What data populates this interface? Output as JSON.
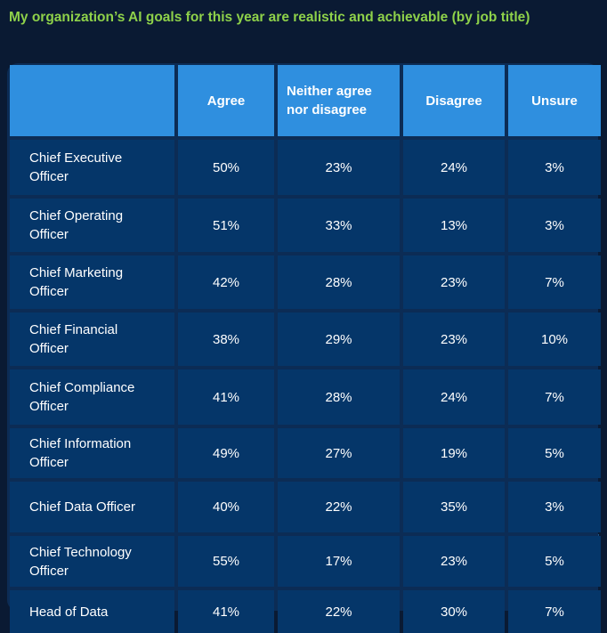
{
  "title": "My organization’s AI goals for this year are realistic and achievable (by job title)",
  "chart_data": {
    "type": "table",
    "title": "My organization’s AI goals for this year are realistic and achievable (by job title)",
    "columns": [
      "",
      "Agree",
      "Neither agree nor disagree",
      "Disagree",
      "Unsure"
    ],
    "rows": [
      {
        "label": "Chief Executive Officer",
        "values": [
          "50%",
          "23%",
          "24%",
          "3%"
        ]
      },
      {
        "label": "Chief Operating Officer",
        "values": [
          "51%",
          "33%",
          "13%",
          "3%"
        ]
      },
      {
        "label": "Chief Marketing Officer",
        "values": [
          "42%",
          "28%",
          "23%",
          "7%"
        ]
      },
      {
        "label": "Chief Financial Officer",
        "values": [
          "38%",
          "29%",
          "23%",
          "10%"
        ]
      },
      {
        "label": "Chief Compliance Officer",
        "values": [
          "41%",
          "28%",
          "24%",
          "7%"
        ]
      },
      {
        "label": "Chief Information Officer",
        "values": [
          "49%",
          "27%",
          "19%",
          "5%"
        ]
      },
      {
        "label": "Chief Data Officer",
        "values": [
          "40%",
          "22%",
          "35%",
          "3%"
        ]
      },
      {
        "label": "Chief Technology Officer",
        "values": [
          "55%",
          "17%",
          "23%",
          "5%"
        ]
      },
      {
        "label": "Head of Data",
        "values": [
          "41%",
          "22%",
          "30%",
          "7%"
        ]
      }
    ]
  },
  "colors": {
    "background": "#0a1a33",
    "title": "#8ed14a",
    "header": "#2f8fdf",
    "row": "#053669",
    "text": "#ffffff"
  }
}
